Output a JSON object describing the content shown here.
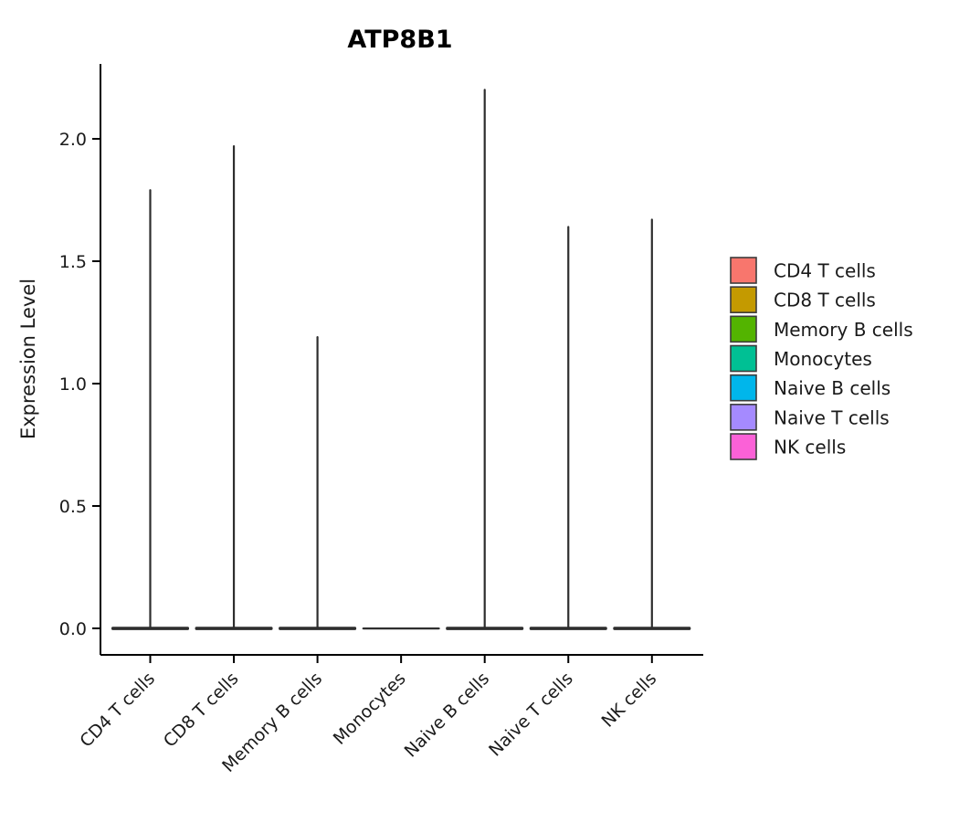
{
  "window": {
    "background": "#ffffff"
  },
  "chart_data": {
    "type": "violin",
    "title": "ATP8B1",
    "ylabel": "Expression Level",
    "xlabel": "",
    "categories": [
      "CD4 T cells",
      "CD8 T cells",
      "Memory B cells",
      "Monocytes",
      "Naive B cells",
      "Naive T cells",
      "NK cells"
    ],
    "yticks": [
      "0.0",
      "0.5",
      "1.0",
      "1.5",
      "2.0"
    ],
    "ylim": [
      -0.11,
      2.31
    ],
    "grid": false,
    "violin_outline_color": "#2e2e2e",
    "axis_color": "#000000",
    "violins": [
      {
        "category": "CD4 T cells",
        "color": "#F8766D",
        "max_expression": 1.79,
        "density_concentrated_at": 0.0
      },
      {
        "category": "CD8 T cells",
        "color": "#C49A00",
        "max_expression": 1.97,
        "density_concentrated_at": 0.0
      },
      {
        "category": "Memory B cells",
        "color": "#53B400",
        "max_expression": 1.19,
        "density_concentrated_at": 0.0
      },
      {
        "category": "Monocytes",
        "color": "#00C094",
        "max_expression": 0.0,
        "density_concentrated_at": 0.0
      },
      {
        "category": "Naive B cells",
        "color": "#00B6EB",
        "max_expression": 2.2,
        "density_concentrated_at": 0.0
      },
      {
        "category": "Naive T cells",
        "color": "#A58AFF",
        "max_expression": 1.64,
        "density_concentrated_at": 0.0
      },
      {
        "category": "NK cells",
        "color": "#FB61D7",
        "max_expression": 1.67,
        "density_concentrated_at": 0.0
      }
    ],
    "legend": {
      "position": "right",
      "entries": [
        {
          "label": "CD4 T cells",
          "color": "#F8766D"
        },
        {
          "label": "CD8 T cells",
          "color": "#C49A00"
        },
        {
          "label": "Memory B cells",
          "color": "#53B400"
        },
        {
          "label": "Monocytes",
          "color": "#00C094"
        },
        {
          "label": "Naive B cells",
          "color": "#00B6EB"
        },
        {
          "label": "Naive T cells",
          "color": "#A58AFF"
        },
        {
          "label": "NK cells",
          "color": "#FB61D7"
        }
      ]
    }
  }
}
